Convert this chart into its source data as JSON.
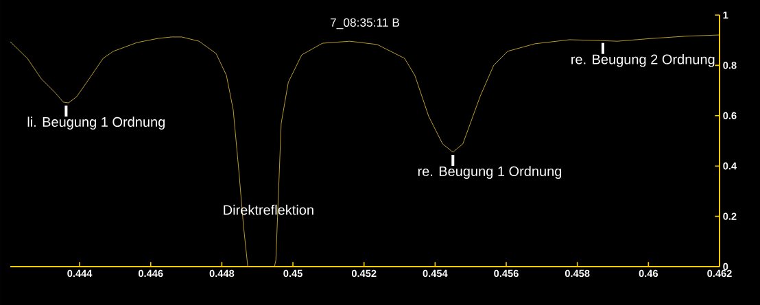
{
  "chart_data": {
    "type": "line",
    "title": "7_08:35:11 B",
    "series": [
      {
        "color": "#e8c23a",
        "x": [
          0.44205,
          0.44253,
          0.44292,
          0.44331,
          0.44354,
          0.44369,
          0.44392,
          0.44427,
          0.44466,
          0.44495,
          0.44562,
          0.4462,
          0.44659,
          0.44687,
          0.44736,
          0.44784,
          0.44813,
          0.44832,
          0.44848,
          0.44861,
          0.44873,
          0.44948,
          0.44952,
          0.44958,
          0.44967,
          0.44987,
          0.45025,
          0.45083,
          0.4516,
          0.45237,
          0.45314,
          0.45343,
          0.45382,
          0.45421,
          0.4545,
          0.45478,
          0.45527,
          0.45565,
          0.45604,
          0.45681,
          0.45778,
          0.45855,
          0.45913,
          0.46009,
          0.46105,
          0.462
        ],
        "values": [
          0.894,
          0.828,
          0.747,
          0.692,
          0.654,
          0.651,
          0.676,
          0.747,
          0.828,
          0.856,
          0.891,
          0.907,
          0.913,
          0.913,
          0.896,
          0.847,
          0.76,
          0.624,
          0.379,
          0.161,
          0,
          0,
          0.025,
          0.243,
          0.569,
          0.733,
          0.842,
          0.888,
          0.896,
          0.883,
          0.828,
          0.76,
          0.597,
          0.488,
          0.455,
          0.488,
          0.678,
          0.801,
          0.856,
          0.886,
          0.902,
          0.899,
          0.896,
          0.907,
          0.916,
          0.921
        ]
      }
    ],
    "xlim": [
      0.44205,
      0.462
    ],
    "xticks": [
      0.444,
      0.446,
      0.448,
      0.45,
      0.452,
      0.454,
      0.456,
      0.458,
      0.46,
      0.462
    ],
    "ylim": [
      0,
      1
    ],
    "yticks": [
      0,
      0.2,
      0.4,
      0.6,
      0.8,
      1
    ],
    "annotations": [
      {
        "text": "li. Beugung 1 Ordnung",
        "x": 0.44362,
        "y": 0.651
      },
      "Direktreflektion",
      {
        "text": "re. Beugung 1 Ordnung",
        "x": 0.4545,
        "y": 0.455
      },
      {
        "text": "re. Beugung 2 Ordnung",
        "x": 0.45872,
        "y": 0.9
      }
    ],
    "grid": false,
    "marker": "none",
    "line_style": "solid"
  }
}
